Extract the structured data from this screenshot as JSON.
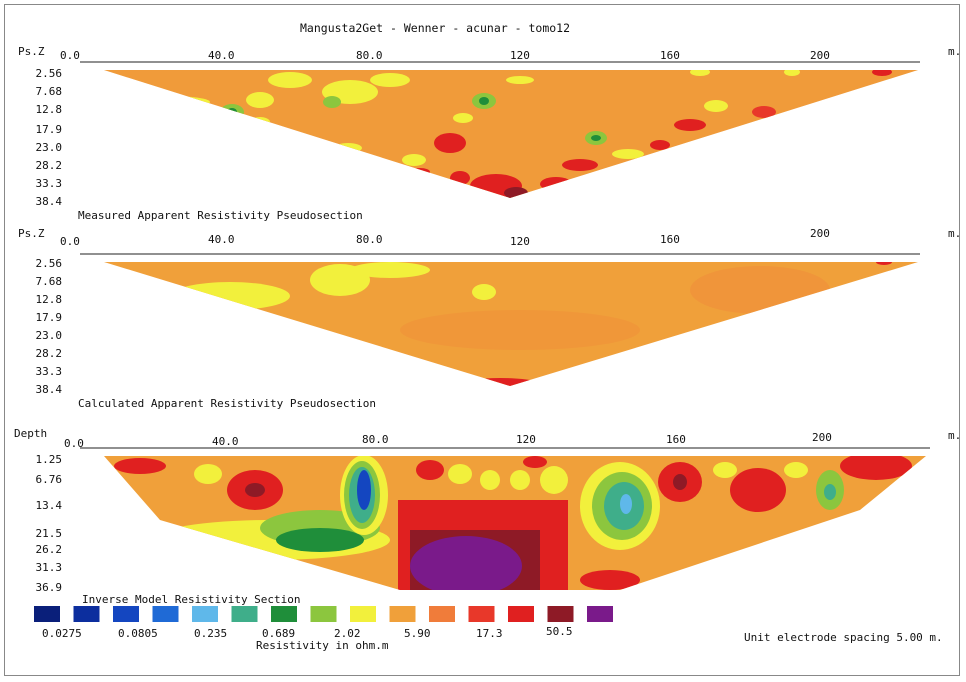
{
  "title": "Mangusta2Get - Wenner - acunar - tomo12",
  "x_unit": "m.",
  "x_ticks": [
    "0.0",
    "40.0",
    "80.0",
    "120",
    "160",
    "200"
  ],
  "panels": [
    {
      "axis_label": "Ps.Z",
      "caption": "Measured Apparent Resistivity Pseudosection",
      "depth_ticks": [
        "2.56",
        "7.68",
        "12.8",
        "17.9",
        "23.0",
        "28.2",
        "33.3",
        "38.4"
      ]
    },
    {
      "axis_label": "Ps.Z",
      "caption": "Calculated Apparent Resistivity Pseudosection",
      "depth_ticks": [
        "2.56",
        "7.68",
        "12.8",
        "17.9",
        "23.0",
        "28.2",
        "33.3",
        "38.4"
      ]
    },
    {
      "axis_label": "Depth",
      "caption": "Inverse Model Resistivity Section",
      "depth_ticks": [
        "1.25",
        "6.76",
        "13.4",
        "21.5",
        "26.2",
        "31.3",
        "36.9"
      ]
    }
  ],
  "legend": {
    "colors": [
      "#0a1f7a",
      "#0c2e9e",
      "#1446c0",
      "#1f6ad6",
      "#5fb8ea",
      "#3fae8a",
      "#1f8e3a",
      "#8cc63e",
      "#f2f03c",
      "#f0a03a",
      "#f07c3a",
      "#e8382a",
      "#e02020",
      "#8e1a26",
      "#7a1a8a"
    ],
    "labels": [
      "0.0275",
      "0.0805",
      "0.235",
      "0.689",
      "2.02",
      "5.90",
      "17.3",
      "50.5"
    ],
    "unit_label": "Resistivity in ohm.m"
  },
  "footer": "Unit electrode spacing 5.00 m."
}
